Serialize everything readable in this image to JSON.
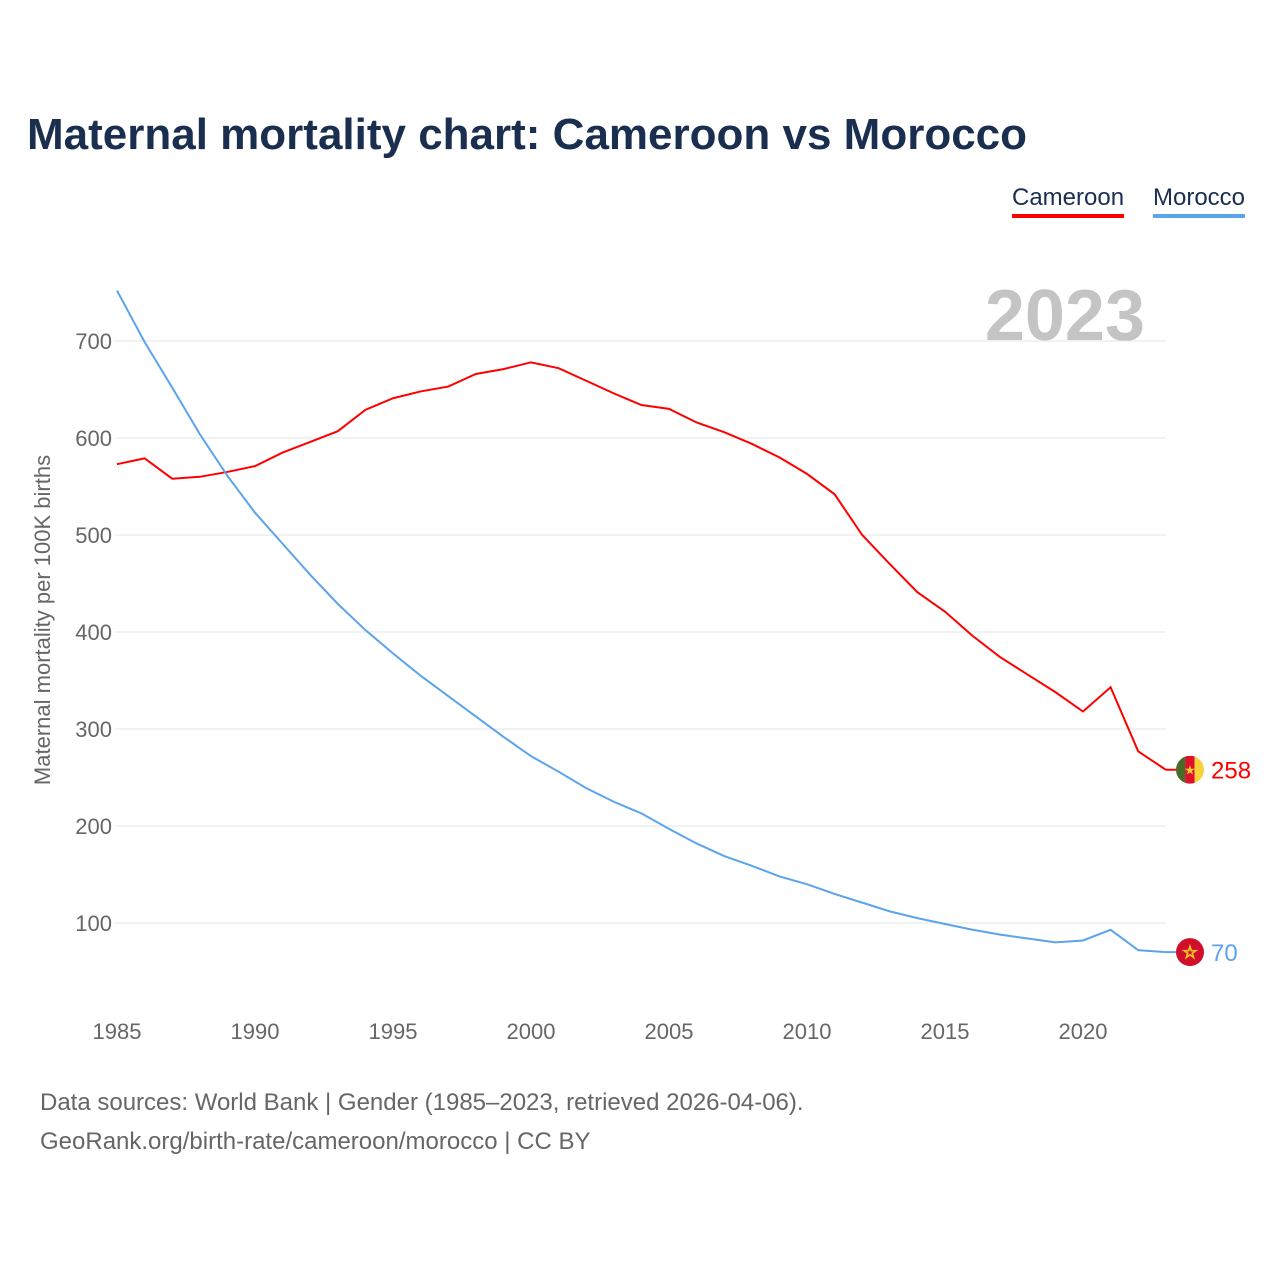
{
  "chart_data": {
    "type": "line",
    "title": "Maternal mortality chart: Cameroon vs Morocco",
    "ylabel": "Maternal mortality per 100K births",
    "xlabel": "",
    "year_label": "2023",
    "xlim": [
      1985,
      2023
    ],
    "ylim": [
      0,
      760
    ],
    "x_ticks": [
      1985,
      1990,
      1995,
      2000,
      2005,
      2010,
      2015,
      2020
    ],
    "y_ticks": [
      100,
      200,
      300,
      400,
      500,
      600,
      700
    ],
    "grid": true,
    "legend_position": "top-right",
    "x": [
      1985,
      1986,
      1987,
      1988,
      1989,
      1990,
      1991,
      1992,
      1993,
      1994,
      1995,
      1996,
      1997,
      1998,
      1999,
      2000,
      2001,
      2002,
      2003,
      2004,
      2005,
      2006,
      2007,
      2008,
      2009,
      2010,
      2011,
      2012,
      2013,
      2014,
      2015,
      2016,
      2017,
      2018,
      2019,
      2020,
      2021,
      2022,
      2023
    ],
    "series": [
      {
        "name": "Cameroon",
        "color": "#ff0000",
        "end_label": "258",
        "values": [
          573,
          579,
          558,
          560,
          565,
          571,
          585,
          596,
          607,
          629,
          641,
          648,
          653,
          666,
          671,
          678,
          672,
          659,
          646,
          634,
          630,
          616,
          606,
          594,
          580,
          563,
          542,
          500,
          470,
          441,
          421,
          396,
          374,
          356,
          338,
          318,
          343,
          277,
          258
        ]
      },
      {
        "name": "Morocco",
        "color": "#5ba4ec",
        "end_label": "70",
        "values": [
          752,
          699,
          652,
          604,
          561,
          523,
          491,
          459,
          429,
          402,
          378,
          355,
          334,
          313,
          292,
          272,
          256,
          239,
          225,
          213,
          197,
          182,
          169,
          159,
          148,
          140,
          130,
          121,
          112,
          105,
          99,
          93,
          88,
          84,
          80,
          82,
          93,
          72,
          70
        ]
      }
    ]
  },
  "footer": {
    "line1": "Data sources: World Bank | Gender (1985–2023, retrieved 2026-04-06).",
    "line2": "GeoRank.org/birth-rate/cameroon/morocco | CC BY"
  }
}
